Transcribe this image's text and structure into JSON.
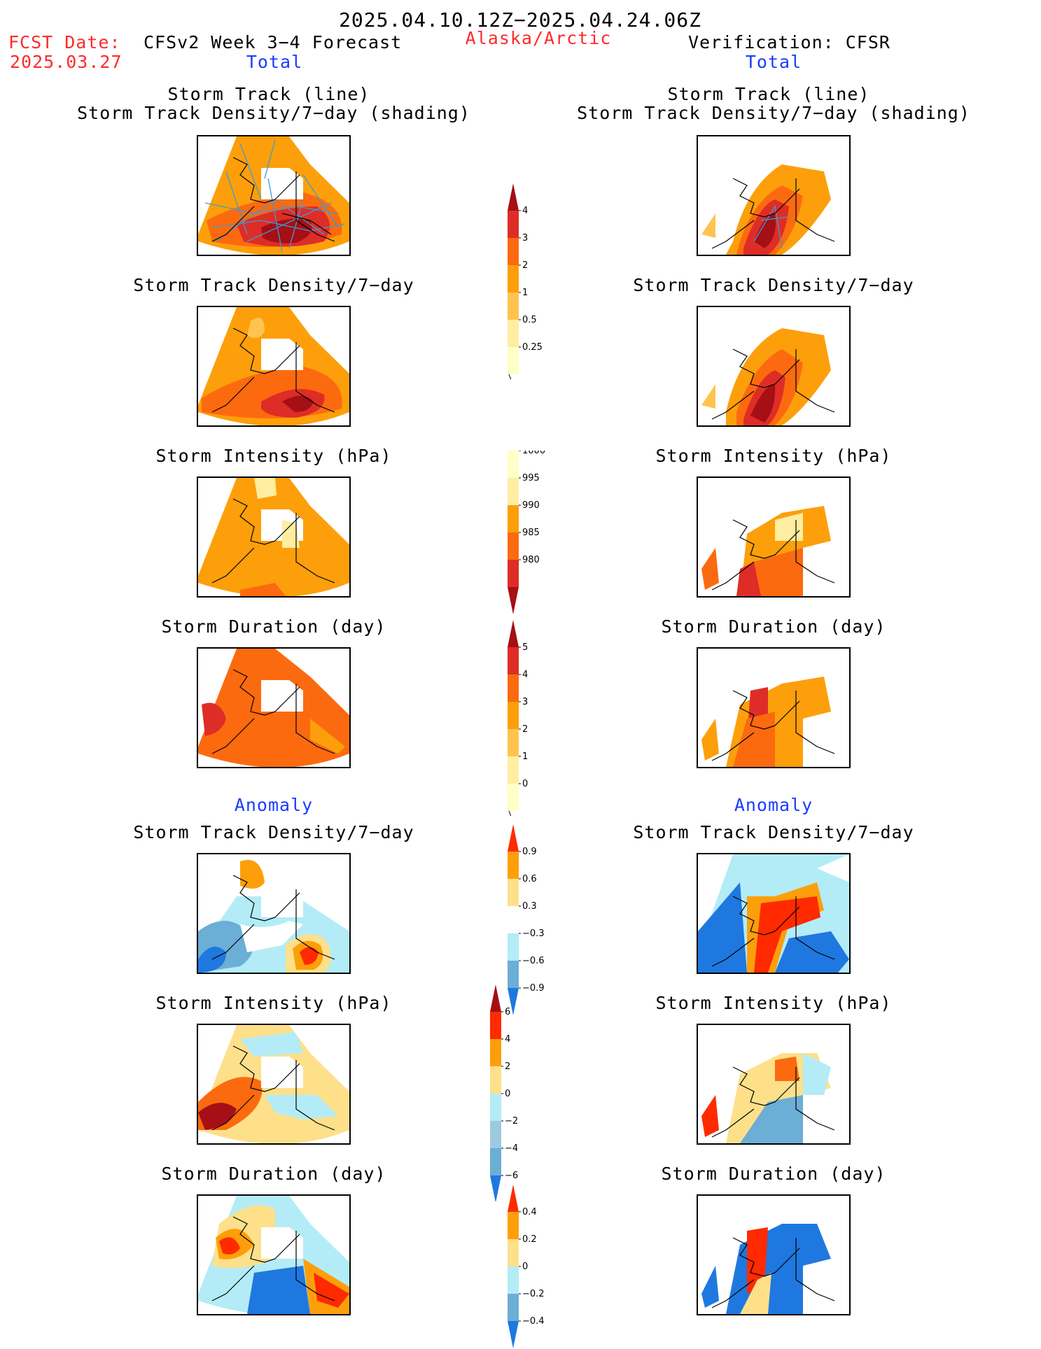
{
  "header": {
    "period": "2025.04.10.12Z−2025.04.24.06Z",
    "fcst_label": "FCST Date:",
    "fcst_date": "2025.03.27",
    "model": "CFSv2 Week 3−4 Forecast",
    "region": "Alaska/Arctic",
    "verification": "Verification: CFSR"
  },
  "sections": {
    "total": "Total",
    "anomaly": "Anomaly"
  },
  "panel_titles": {
    "track_line": "Storm Track (line)",
    "track_shading": "Storm Track Density/7−day (shading)",
    "density": "Storm Track Density/7−day",
    "intensity": "Storm Intensity (hPa)",
    "duration": "Storm Duration (day)"
  },
  "colorbars": {
    "density_total": {
      "labels": [
        "4",
        "3",
        "2",
        "1",
        "0.5",
        "0.25"
      ],
      "colors": [
        "#a50f15",
        "#de2d26",
        "#fc6a0f",
        "#fd9f0a",
        "#fec44f",
        "#ffeda0",
        "#ffffc8"
      ]
    },
    "intensity_total": {
      "labels": [
        "1000",
        "995",
        "990",
        "985",
        "980"
      ],
      "colors": [
        "#ffffc8",
        "#ffeda0",
        "#fd9f0a",
        "#fc6a0f",
        "#de2d26",
        "#a50f15"
      ]
    },
    "duration_total": {
      "labels": [
        "5",
        "4",
        "3",
        "2",
        "1",
        "0"
      ],
      "colors": [
        "#a50f15",
        "#de2d26",
        "#fc6a0f",
        "#fd9f0a",
        "#fec44f",
        "#ffeda0",
        "#ffffc8"
      ]
    },
    "density_anom": {
      "labels": [
        "0.9",
        "0.6",
        "0.3",
        "−0.3",
        "−0.6",
        "−0.9"
      ],
      "colors": [
        "#ff2a00",
        "#fd9f0a",
        "#fee08b",
        "#ffffff",
        "#b3ecf7",
        "#6baed6",
        "#1f78e0"
      ]
    },
    "intensity_anom": {
      "labels": [
        "6",
        "4",
        "2",
        "0",
        "−2",
        "−4",
        "−6"
      ],
      "colors": [
        "#a50f15",
        "#ff2a00",
        "#fd9f0a",
        "#fee08b",
        "#b3ecf7",
        "#9ecae1",
        "#6baed6",
        "#1f78e0"
      ]
    },
    "duration_anom": {
      "labels": [
        "0.4",
        "0.2",
        "0",
        "−0.2",
        "−0.4"
      ],
      "colors": [
        "#ff2a00",
        "#fd9f0a",
        "#fee08b",
        "#b3ecf7",
        "#6baed6",
        "#1f78e0"
      ]
    }
  },
  "palette": {
    "dark_red": "#a50f15",
    "red": "#de2d26",
    "orange_red": "#fc6a0f",
    "orange": "#fd9f0a",
    "light_orange": "#fec44f",
    "pale_yellow": "#ffeda0",
    "light_blue": "#b3ecf7",
    "mid_blue": "#6baed6",
    "blue": "#1f78e0",
    "track_line": "#3b9cd9"
  }
}
